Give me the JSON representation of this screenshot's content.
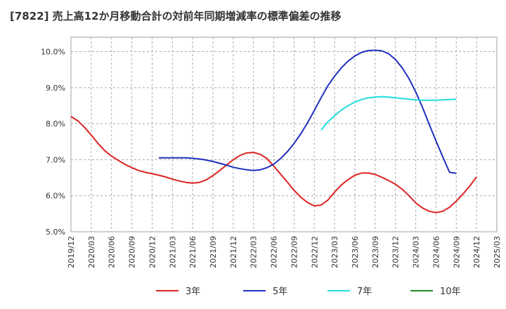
{
  "chart_data": {
    "type": "line",
    "title": "[7822]  売上高12か月移動合計の対前年同期増減率の標準偏差の推移",
    "xlabel": "",
    "ylabel": "",
    "ylim": [
      5.0,
      10.4
    ],
    "y_ticks": [
      "5.0%",
      "6.0%",
      "7.0%",
      "8.0%",
      "9.0%",
      "10.0%"
    ],
    "y_tick_values": [
      5,
      6,
      7,
      8,
      9,
      10
    ],
    "x_ticks": [
      "2019/12",
      "2020/03",
      "2020/06",
      "2020/09",
      "2020/12",
      "2021/03",
      "2021/06",
      "2021/09",
      "2021/12",
      "2022/03",
      "2022/06",
      "2022/09",
      "2022/12",
      "2023/03",
      "2023/06",
      "2023/09",
      "2023/12",
      "2024/03",
      "2024/06",
      "2024/09",
      "2024/12",
      "2025/03"
    ],
    "grid": true,
    "legend_position": "bottom",
    "series": [
      {
        "name": "3年",
        "color": "#dd2222",
        "points": [
          [
            "2019/12",
            8.2
          ],
          [
            "2020/01",
            8.08
          ],
          [
            "2020/02",
            7.9
          ],
          [
            "2020/03",
            7.68
          ],
          [
            "2020/04",
            7.45
          ],
          [
            "2020/05",
            7.25
          ],
          [
            "2020/06",
            7.1
          ],
          [
            "2020/07",
            6.98
          ],
          [
            "2020/08",
            6.87
          ],
          [
            "2020/09",
            6.78
          ],
          [
            "2020/10",
            6.7
          ],
          [
            "2020/11",
            6.65
          ],
          [
            "2020/12",
            6.61
          ],
          [
            "2021/01",
            6.57
          ],
          [
            "2021/02",
            6.52
          ],
          [
            "2021/03",
            6.46
          ],
          [
            "2021/04",
            6.41
          ],
          [
            "2021/05",
            6.37
          ],
          [
            "2021/06",
            6.35
          ],
          [
            "2021/07",
            6.37
          ],
          [
            "2021/08",
            6.44
          ],
          [
            "2021/09",
            6.56
          ],
          [
            "2021/10",
            6.7
          ],
          [
            "2021/11",
            6.85
          ],
          [
            "2021/12",
            7.0
          ],
          [
            "2022/01",
            7.12
          ],
          [
            "2022/02",
            7.19
          ],
          [
            "2022/03",
            7.2
          ],
          [
            "2022/04",
            7.15
          ],
          [
            "2022/05",
            7.03
          ],
          [
            "2022/06",
            6.82
          ],
          [
            "2022/07",
            6.6
          ],
          [
            "2022/08",
            6.38
          ],
          [
            "2022/09",
            6.15
          ],
          [
            "2022/10",
            5.96
          ],
          [
            "2022/11",
            5.81
          ],
          [
            "2022/12",
            5.72
          ],
          [
            "2023/01",
            5.74
          ],
          [
            "2023/02",
            5.88
          ],
          [
            "2023/03",
            6.1
          ],
          [
            "2023/04",
            6.3
          ],
          [
            "2023/05",
            6.45
          ],
          [
            "2023/06",
            6.57
          ],
          [
            "2023/07",
            6.63
          ],
          [
            "2023/08",
            6.63
          ],
          [
            "2023/09",
            6.59
          ],
          [
            "2023/10",
            6.51
          ],
          [
            "2023/11",
            6.42
          ],
          [
            "2023/12",
            6.32
          ],
          [
            "2024/01",
            6.18
          ],
          [
            "2024/02",
            6.0
          ],
          [
            "2024/03",
            5.8
          ],
          [
            "2024/04",
            5.66
          ],
          [
            "2024/05",
            5.57
          ],
          [
            "2024/06",
            5.53
          ],
          [
            "2024/07",
            5.57
          ],
          [
            "2024/08",
            5.68
          ],
          [
            "2024/09",
            5.85
          ],
          [
            "2024/10",
            6.05
          ],
          [
            "2024/11",
            6.27
          ],
          [
            "2024/12",
            6.52
          ]
        ]
      },
      {
        "name": "5年",
        "color": "#1f2fbf",
        "points": [
          [
            "2021/01",
            7.05
          ],
          [
            "2021/02",
            7.05
          ],
          [
            "2021/03",
            7.05
          ],
          [
            "2021/04",
            7.05
          ],
          [
            "2021/05",
            7.05
          ],
          [
            "2021/06",
            7.04
          ],
          [
            "2021/07",
            7.02
          ],
          [
            "2021/08",
            6.99
          ],
          [
            "2021/09",
            6.95
          ],
          [
            "2021/10",
            6.9
          ],
          [
            "2021/11",
            6.85
          ],
          [
            "2021/12",
            6.79
          ],
          [
            "2022/01",
            6.75
          ],
          [
            "2022/02",
            6.72
          ],
          [
            "2022/03",
            6.7
          ],
          [
            "2022/04",
            6.72
          ],
          [
            "2022/05",
            6.78
          ],
          [
            "2022/06",
            6.88
          ],
          [
            "2022/07",
            7.03
          ],
          [
            "2022/08",
            7.22
          ],
          [
            "2022/09",
            7.45
          ],
          [
            "2022/10",
            7.72
          ],
          [
            "2022/11",
            8.03
          ],
          [
            "2022/12",
            8.37
          ],
          [
            "2023/01",
            8.72
          ],
          [
            "2023/02",
            9.05
          ],
          [
            "2023/03",
            9.32
          ],
          [
            "2023/04",
            9.55
          ],
          [
            "2023/05",
            9.74
          ],
          [
            "2023/06",
            9.88
          ],
          [
            "2023/07",
            9.98
          ],
          [
            "2023/08",
            10.03
          ],
          [
            "2023/09",
            10.04
          ],
          [
            "2023/10",
            10.02
          ],
          [
            "2023/11",
            9.94
          ],
          [
            "2023/12",
            9.78
          ],
          [
            "2024/01",
            9.55
          ],
          [
            "2024/02",
            9.25
          ],
          [
            "2024/03",
            8.88
          ],
          [
            "2024/04",
            8.45
          ],
          [
            "2024/05",
            7.98
          ],
          [
            "2024/06",
            7.52
          ],
          [
            "2024/07",
            7.08
          ],
          [
            "2024/08",
            6.65
          ],
          [
            "2024/09",
            6.62
          ]
        ]
      },
      {
        "name": "7年",
        "color": "#22dddd",
        "points": [
          [
            "2023/01",
            7.82
          ],
          [
            "2023/02",
            8.05
          ],
          [
            "2023/03",
            8.22
          ],
          [
            "2023/04",
            8.38
          ],
          [
            "2023/05",
            8.5
          ],
          [
            "2023/06",
            8.6
          ],
          [
            "2023/07",
            8.67
          ],
          [
            "2023/08",
            8.72
          ],
          [
            "2023/09",
            8.74
          ],
          [
            "2023/10",
            8.75
          ],
          [
            "2023/11",
            8.74
          ],
          [
            "2023/12",
            8.72
          ],
          [
            "2024/01",
            8.7
          ],
          [
            "2024/02",
            8.68
          ],
          [
            "2024/03",
            8.66
          ],
          [
            "2024/04",
            8.65
          ],
          [
            "2024/05",
            8.65
          ],
          [
            "2024/06",
            8.65
          ],
          [
            "2024/07",
            8.66
          ],
          [
            "2024/08",
            8.67
          ],
          [
            "2024/09",
            8.68
          ]
        ]
      },
      {
        "name": "10年",
        "color": "#228822",
        "points": []
      }
    ]
  }
}
